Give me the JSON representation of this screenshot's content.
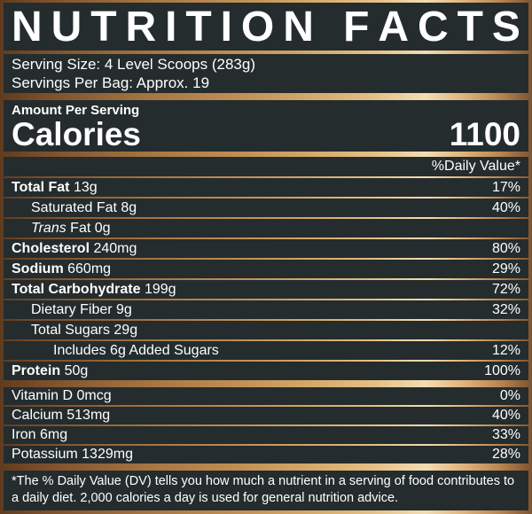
{
  "title": "NUTRITION FACTS",
  "serving": {
    "size": "Serving Size: 4 Level Scoops (283g)",
    "per_bag": "Servings Per Bag: Approx. 19"
  },
  "calories": {
    "header": "Amount Per Serving",
    "label": "Calories",
    "value": "1100"
  },
  "daily_value_header": "%Daily Value*",
  "nutrients": [
    {
      "name": "Total Fat",
      "amount": "13g",
      "dv": "17%",
      "style": "bold",
      "indent": 0
    },
    {
      "name": "Saturated Fat",
      "amount": "8g",
      "dv": "40%",
      "style": "plain",
      "indent": 1
    },
    {
      "name": "Trans",
      "amount": "Fat 0g",
      "dv": "",
      "style": "italic",
      "indent": 1
    },
    {
      "name": "Cholesterol",
      "amount": "240mg",
      "dv": "80%",
      "style": "bold",
      "indent": 0
    },
    {
      "name": "Sodium",
      "amount": "660mg",
      "dv": "29%",
      "style": "bold",
      "indent": 0
    },
    {
      "name": "Total Carbohydrate",
      "amount": "199g",
      "dv": "72%",
      "style": "bold",
      "indent": 0
    },
    {
      "name": "Dietary Fiber",
      "amount": "9g",
      "dv": "32%",
      "style": "plain",
      "indent": 1
    },
    {
      "name": "Total Sugars",
      "amount": "29g",
      "dv": "",
      "style": "plain",
      "indent": 1
    },
    {
      "name": "Includes 6g Added Sugars",
      "amount": "",
      "dv": "12%",
      "style": "plain",
      "indent": 2
    },
    {
      "name": "Protein",
      "amount": "50g",
      "dv": "100%",
      "style": "bold",
      "indent": 0
    }
  ],
  "micronutrients": [
    {
      "name": "Vitamin D",
      "amount": "0mcg",
      "dv": "0%",
      "style": "plain",
      "indent": 0
    },
    {
      "name": "Calcium",
      "amount": "513mg",
      "dv": "40%",
      "style": "plain",
      "indent": 0
    },
    {
      "name": "Iron",
      "amount": "6mg",
      "dv": "33%",
      "style": "plain",
      "indent": 0
    },
    {
      "name": "Potassium",
      "amount": "1329mg",
      "dv": "28%",
      "style": "plain",
      "indent": 0
    }
  ],
  "footnote": "*The % Daily Value (DV) tells you how much a nutrient in a serving of food contributes to a daily diet. 2,000 calories a day is used for general nutrition advice.",
  "colors": {
    "panel_bg": "#242c2e",
    "text": "#ffffff",
    "bronze_dark": "#6b4224",
    "bronze_mid": "#c29055",
    "bronze_light": "#f3dcb2"
  }
}
